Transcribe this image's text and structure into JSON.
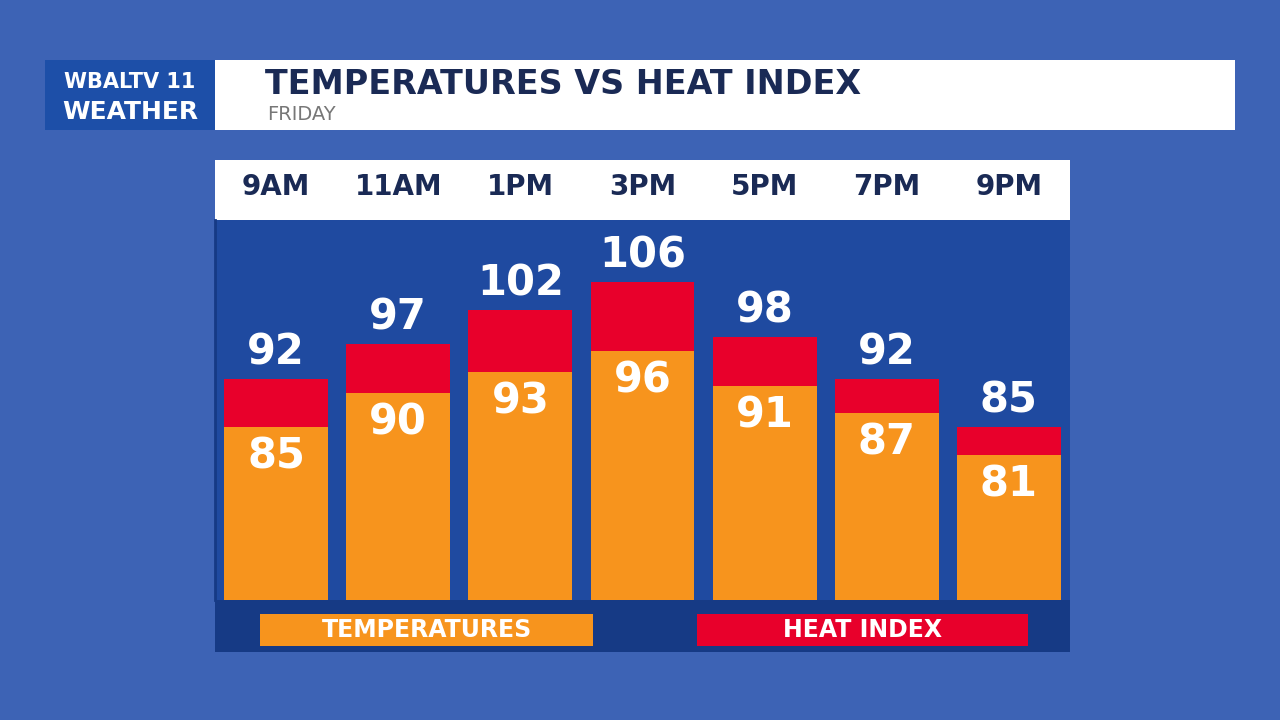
{
  "chart_data": {
    "type": "bar",
    "title": "TEMPERATURES VS HEAT INDEX",
    "subtitle": "FRIDAY",
    "annotations": [
      "WBALTV 11",
      "WEATHER"
    ],
    "categories": [
      "9AM",
      "11AM",
      "1PM",
      "3PM",
      "5PM",
      "7PM",
      "9PM"
    ],
    "series": [
      {
        "name": "HEAT INDEX",
        "color": "#e8002b",
        "values": [
          92,
          97,
          102,
          106,
          98,
          92,
          85
        ]
      },
      {
        "name": "TEMPERATURES",
        "color": "#f7941d",
        "values": [
          85,
          90,
          93,
          96,
          91,
          87,
          81
        ]
      }
    ],
    "ylim": [
      60,
      115
    ],
    "data_labels": true,
    "tick_labels": "x",
    "grid": false
  }
}
